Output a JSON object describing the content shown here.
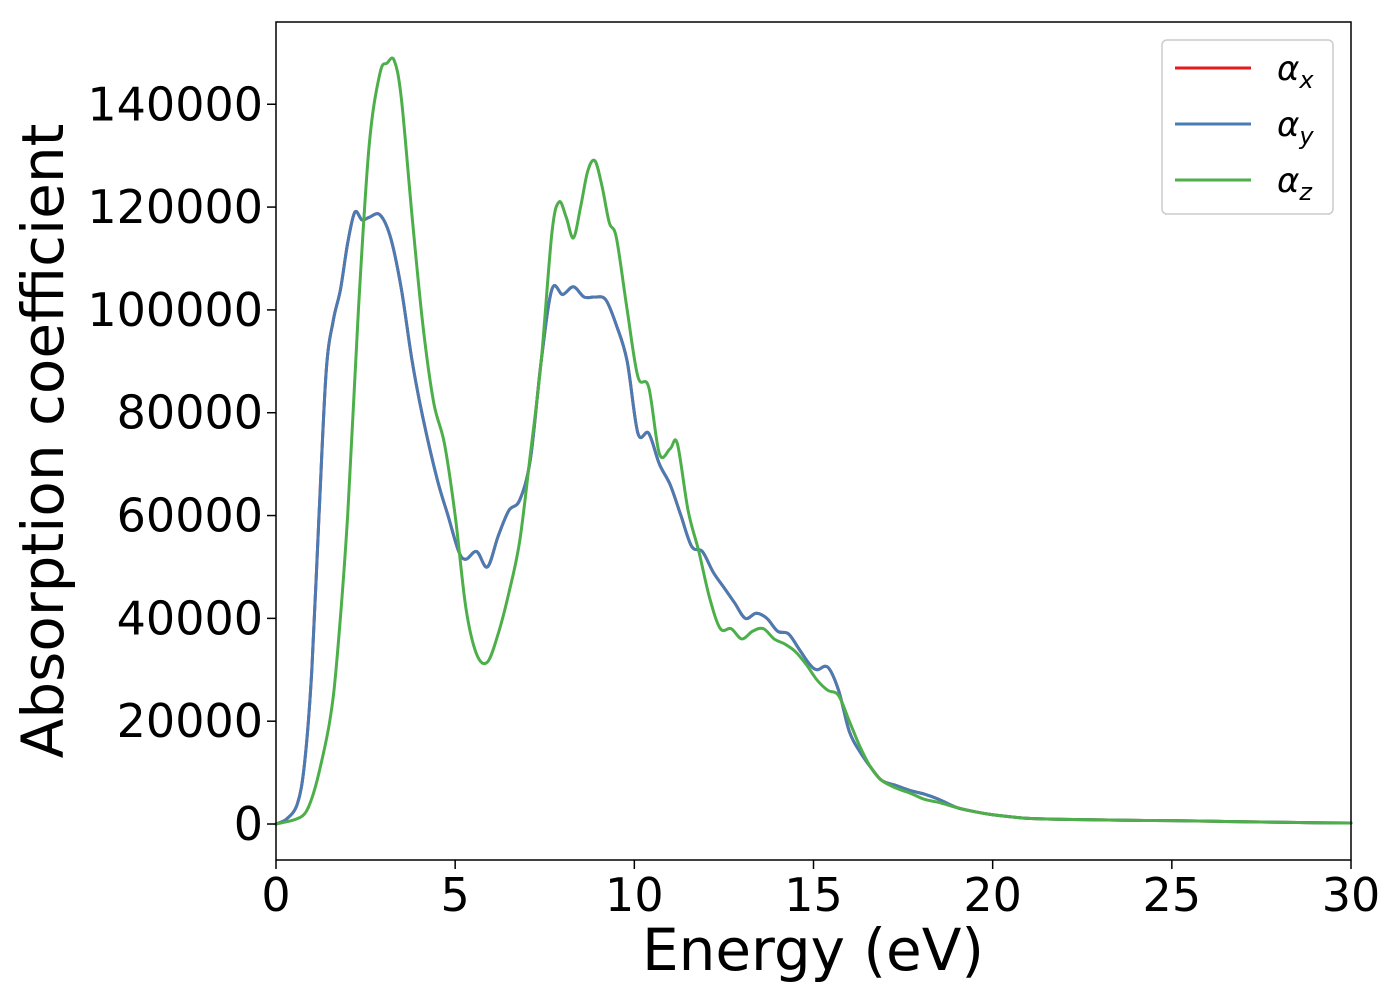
{
  "chart_data": {
    "type": "line",
    "title": "",
    "xlabel": "Energy (eV)",
    "ylabel": "Absorption coefficient",
    "xlim": [
      0,
      30
    ],
    "ylim": [
      -7000,
      156000
    ],
    "x_ticks": [
      0,
      5,
      10,
      15,
      20,
      25,
      30
    ],
    "x_tick_labels": [
      "0",
      "5",
      "10",
      "15",
      "20",
      "25",
      "30"
    ],
    "y_ticks": [
      0,
      20000,
      40000,
      60000,
      80000,
      100000,
      120000,
      140000
    ],
    "y_tick_labels": [
      "0",
      "20000",
      "40000",
      "60000",
      "80000",
      "100000",
      "120000",
      "140000"
    ],
    "grid": false,
    "legend_position": "top-right",
    "series": [
      {
        "name": "α_x",
        "legend_symbol": "α",
        "legend_subscript": "x",
        "color": "#e41a1c",
        "x": [
          0,
          0.3,
          0.6,
          0.8,
          1.0,
          1.2,
          1.4,
          1.6,
          1.8,
          2.0,
          2.2,
          2.4,
          2.6,
          2.9,
          3.2,
          3.5,
          3.8,
          4.1,
          4.5,
          4.8,
          5.1,
          5.3,
          5.6,
          5.9,
          6.2,
          6.5,
          6.8,
          7.1,
          7.4,
          7.7,
          8.0,
          8.3,
          8.6,
          8.9,
          9.2,
          9.5,
          9.8,
          10.1,
          10.4,
          10.7,
          11.0,
          11.3,
          11.6,
          11.9,
          12.2,
          12.5,
          12.8,
          13.1,
          13.4,
          13.7,
          14.0,
          14.3,
          14.6,
          14.9,
          15.1,
          15.4,
          15.7,
          16.0,
          16.3,
          16.6,
          16.9,
          17.3,
          17.7,
          18.1,
          18.5,
          19.0,
          19.5,
          20.0,
          20.5,
          21.0,
          22.0,
          23.0,
          24.0,
          25.0,
          26.0,
          27.0,
          28.0,
          29.0,
          30.0
        ],
        "values": [
          0,
          1000,
          4000,
          12000,
          30000,
          60000,
          88000,
          98000,
          104000,
          113000,
          119000,
          117500,
          118000,
          118500,
          114000,
          104000,
          90000,
          79000,
          67000,
          60000,
          53000,
          51500,
          53000,
          50000,
          56000,
          61000,
          63000,
          71000,
          90000,
          104000,
          103000,
          104500,
          102500,
          102500,
          102000,
          97000,
          90000,
          76000,
          76000,
          70000,
          66000,
          60000,
          54000,
          53000,
          49000,
          46000,
          43000,
          40000,
          41000,
          40000,
          37500,
          37000,
          34000,
          31000,
          30000,
          30500,
          26000,
          18000,
          14000,
          11000,
          8500,
          7500,
          6500,
          5800,
          4800,
          3200,
          2400,
          1800,
          1400,
          1100,
          900,
          800,
          700,
          650,
          550,
          450,
          350,
          250,
          200
        ]
      },
      {
        "name": "α_y",
        "legend_symbol": "α",
        "legend_subscript": "y",
        "color": "#4a7cb4",
        "x": [
          0,
          0.3,
          0.6,
          0.8,
          1.0,
          1.2,
          1.4,
          1.6,
          1.8,
          2.0,
          2.2,
          2.4,
          2.6,
          2.9,
          3.2,
          3.5,
          3.8,
          4.1,
          4.5,
          4.8,
          5.1,
          5.3,
          5.6,
          5.9,
          6.2,
          6.5,
          6.8,
          7.1,
          7.4,
          7.7,
          8.0,
          8.3,
          8.6,
          8.9,
          9.2,
          9.5,
          9.8,
          10.1,
          10.4,
          10.7,
          11.0,
          11.3,
          11.6,
          11.9,
          12.2,
          12.5,
          12.8,
          13.1,
          13.4,
          13.7,
          14.0,
          14.3,
          14.6,
          14.9,
          15.1,
          15.4,
          15.7,
          16.0,
          16.3,
          16.6,
          16.9,
          17.3,
          17.7,
          18.1,
          18.5,
          19.0,
          19.5,
          20.0,
          20.5,
          21.0,
          22.0,
          23.0,
          24.0,
          25.0,
          26.0,
          27.0,
          28.0,
          29.0,
          30.0
        ],
        "values": [
          0,
          1000,
          4000,
          12000,
          30000,
          60000,
          88000,
          98000,
          104000,
          113000,
          119000,
          117500,
          118000,
          118500,
          114000,
          104000,
          90000,
          79000,
          67000,
          60000,
          53000,
          51500,
          53000,
          50000,
          56000,
          61000,
          63000,
          71000,
          90000,
          104000,
          103000,
          104500,
          102500,
          102500,
          102000,
          97000,
          90000,
          76000,
          76000,
          70000,
          66000,
          60000,
          54000,
          53000,
          49000,
          46000,
          43000,
          40000,
          41000,
          40000,
          37500,
          37000,
          34000,
          31000,
          30000,
          30500,
          26000,
          18000,
          14000,
          11000,
          8500,
          7500,
          6500,
          5800,
          4800,
          3200,
          2400,
          1800,
          1400,
          1100,
          900,
          800,
          700,
          650,
          550,
          450,
          350,
          250,
          200
        ]
      },
      {
        "name": "α_z",
        "legend_symbol": "α",
        "legend_subscript": "z",
        "color": "#4daf4a",
        "x": [
          0,
          0.5,
          0.8,
          1.0,
          1.2,
          1.5,
          1.7,
          2.0,
          2.3,
          2.6,
          2.9,
          3.1,
          3.3,
          3.5,
          3.8,
          4.1,
          4.4,
          4.7,
          5.0,
          5.3,
          5.6,
          5.9,
          6.2,
          6.5,
          6.8,
          7.1,
          7.4,
          7.7,
          7.9,
          8.1,
          8.3,
          8.5,
          8.7,
          8.9,
          9.1,
          9.3,
          9.5,
          9.8,
          10.1,
          10.4,
          10.7,
          11.0,
          11.2,
          11.5,
          11.8,
          12.1,
          12.4,
          12.7,
          13.0,
          13.3,
          13.6,
          13.9,
          14.2,
          14.5,
          14.8,
          15.1,
          15.4,
          15.7,
          16.0,
          16.3,
          16.6,
          16.9,
          17.3,
          17.7,
          18.1,
          18.5,
          19.0,
          19.5,
          20.0,
          20.5,
          21.0,
          22.0,
          23.0,
          24.0,
          25.0,
          26.0,
          27.0,
          28.0,
          29.0,
          30.0
        ],
        "values": [
          0,
          800,
          2000,
          5000,
          10000,
          20000,
          32000,
          60000,
          100000,
          132000,
          146000,
          148000,
          148500,
          141000,
          118000,
          97000,
          82000,
          74000,
          60000,
          42000,
          33000,
          31500,
          37000,
          45000,
          55000,
          72000,
          90000,
          115000,
          121000,
          118000,
          114000,
          120000,
          127000,
          129000,
          124000,
          117000,
          114000,
          100000,
          87000,
          85000,
          72000,
          73000,
          74000,
          61000,
          53000,
          44000,
          38000,
          38000,
          36000,
          37500,
          38000,
          36000,
          35000,
          33500,
          31000,
          28000,
          26000,
          25000,
          20000,
          15000,
          11000,
          8500,
          7000,
          6000,
          4800,
          4200,
          3200,
          2400,
          1800,
          1400,
          1100,
          900,
          800,
          700,
          650,
          550,
          450,
          350,
          250,
          200
        ]
      }
    ]
  }
}
